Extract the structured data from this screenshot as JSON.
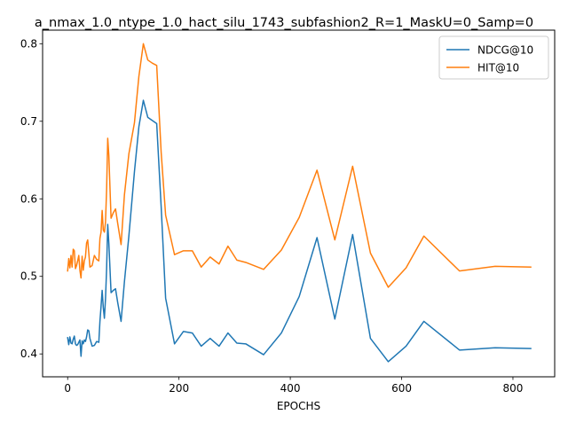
{
  "chart_data": {
    "type": "line",
    "title": "a_nmax_1.0_ntype_1.0_hact_silu_1743_subfashion2_R=1_MaskU=0_Samp=0",
    "xlabel": "EPOCHS",
    "ylabel": "",
    "xlim": [
      -45,
      875
    ],
    "ylim": [
      0.3705,
      0.8175
    ],
    "xticks": [
      0,
      200,
      400,
      600,
      800
    ],
    "yticks": [
      0.4,
      0.5,
      0.6,
      0.7,
      0.8
    ],
    "xtick_labels": [
      "0",
      "200",
      "400",
      "600",
      "800"
    ],
    "ytick_labels": [
      "0.4",
      "0.5",
      "0.6",
      "0.7",
      "0.8"
    ],
    "grid": false,
    "legend_position": "upper right",
    "series": [
      {
        "name": "NDCG@10",
        "color": "#1f77b4",
        "x": [
          0,
          2,
          4,
          6,
          8,
          10,
          12,
          14,
          16,
          18,
          20,
          22,
          24,
          26,
          28,
          30,
          32,
          34,
          36,
          38,
          40,
          44,
          48,
          52,
          56,
          58,
          60,
          62,
          64,
          66,
          68,
          70,
          72,
          74,
          78,
          82,
          86,
          90,
          96,
          102,
          110,
          120,
          128,
          136,
          144,
          152,
          160,
          168,
          176,
          192,
          208,
          224,
          240,
          256,
          272,
          288,
          304,
          320,
          352,
          384,
          416,
          448,
          480,
          512,
          544,
          576,
          608,
          640,
          704,
          768,
          832
        ],
        "y": [
          0.421,
          0.412,
          0.422,
          0.414,
          0.413,
          0.419,
          0.423,
          0.413,
          0.411,
          0.412,
          0.415,
          0.418,
          0.397,
          0.417,
          0.413,
          0.418,
          0.416,
          0.422,
          0.431,
          0.43,
          0.42,
          0.41,
          0.411,
          0.416,
          0.415,
          0.442,
          0.461,
          0.482,
          0.46,
          0.446,
          0.471,
          0.51,
          0.567,
          0.543,
          0.479,
          0.482,
          0.484,
          0.466,
          0.442,
          0.493,
          0.552,
          0.635,
          0.693,
          0.727,
          0.705,
          0.701,
          0.697,
          0.59,
          0.472,
          0.413,
          0.429,
          0.427,
          0.41,
          0.42,
          0.41,
          0.427,
          0.414,
          0.413,
          0.399,
          0.427,
          0.474,
          0.55,
          0.445,
          0.554,
          0.42,
          0.39,
          0.41,
          0.442,
          0.405,
          0.408,
          0.407
        ]
      },
      {
        "name": "HIT@10",
        "color": "#ff7f0e",
        "x": [
          0,
          2,
          4,
          6,
          8,
          10,
          12,
          14,
          16,
          18,
          20,
          22,
          24,
          26,
          28,
          30,
          32,
          34,
          36,
          38,
          40,
          44,
          48,
          52,
          56,
          58,
          60,
          62,
          64,
          66,
          68,
          70,
          72,
          74,
          78,
          82,
          86,
          90,
          96,
          102,
          110,
          120,
          128,
          136,
          144,
          152,
          160,
          168,
          176,
          192,
          208,
          224,
          240,
          256,
          272,
          288,
          304,
          320,
          352,
          384,
          416,
          448,
          480,
          512,
          544,
          576,
          608,
          640,
          704,
          768,
          832
        ],
        "y": [
          0.507,
          0.523,
          0.511,
          0.527,
          0.512,
          0.535,
          0.533,
          0.51,
          0.514,
          0.52,
          0.527,
          0.508,
          0.498,
          0.526,
          0.508,
          0.52,
          0.525,
          0.543,
          0.547,
          0.53,
          0.512,
          0.514,
          0.527,
          0.522,
          0.52,
          0.549,
          0.557,
          0.585,
          0.56,
          0.557,
          0.57,
          0.612,
          0.678,
          0.656,
          0.575,
          0.582,
          0.587,
          0.568,
          0.541,
          0.605,
          0.658,
          0.698,
          0.758,
          0.8,
          0.779,
          0.775,
          0.772,
          0.66,
          0.579,
          0.528,
          0.533,
          0.533,
          0.512,
          0.525,
          0.516,
          0.539,
          0.521,
          0.518,
          0.509,
          0.534,
          0.576,
          0.637,
          0.547,
          0.642,
          0.53,
          0.486,
          0.511,
          0.552,
          0.507,
          0.513,
          0.512
        ]
      }
    ]
  }
}
